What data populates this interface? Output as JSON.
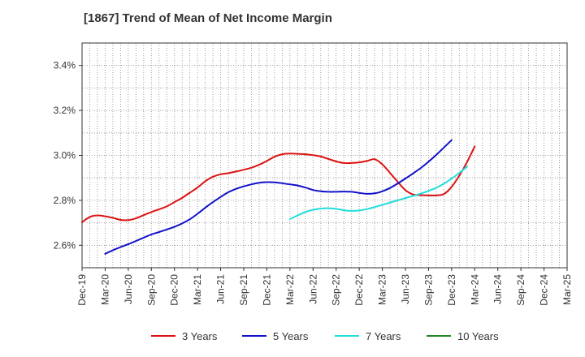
{
  "title": "[1867]  Trend of Mean of Net Income Margin",
  "chart_data": {
    "type": "line",
    "title": "[1867]  Trend of Mean of Net Income Margin",
    "xlabel": "",
    "ylabel": "",
    "x_tick_labels": [
      "Dec-19",
      "Mar-20",
      "Jun-20",
      "Sep-20",
      "Dec-20",
      "Mar-21",
      "Jun-21",
      "Sep-21",
      "Dec-21",
      "Mar-22",
      "Jun-22",
      "Sep-22",
      "Dec-22",
      "Mar-23",
      "Jun-23",
      "Sep-23",
      "Dec-23",
      "Mar-24",
      "Jun-24",
      "Sep-24",
      "Dec-24",
      "Mar-25"
    ],
    "y_ticks": [
      2.6,
      2.8,
      3.0,
      3.2,
      3.4
    ],
    "y_tick_labels": [
      "2.6%",
      "2.8%",
      "3.0%",
      "3.2%",
      "3.4%"
    ],
    "ylim": [
      2.5,
      3.5
    ],
    "grid": true,
    "legend_position": "bottom",
    "series": [
      {
        "name": "3 Years",
        "color": "#dd1111",
        "start_index": 0,
        "values": [
          2.703,
          2.726,
          2.733,
          2.729,
          2.722,
          2.713,
          2.712,
          2.72,
          2.734,
          2.748,
          2.76,
          2.773,
          2.792,
          2.811,
          2.834,
          2.857,
          2.885,
          2.905,
          2.916,
          2.921,
          2.928,
          2.936,
          2.945,
          2.958,
          2.975,
          2.994,
          3.005,
          3.008,
          3.007,
          3.005,
          3.001,
          2.995,
          2.984,
          2.973,
          2.966,
          2.966,
          2.969,
          2.975,
          2.983,
          2.96,
          2.922,
          2.882,
          2.845,
          2.826,
          2.823,
          2.822,
          2.822,
          2.828,
          2.86,
          2.91,
          2.97,
          3.04
        ]
      },
      {
        "name": "5 Years",
        "color": "#1111cc",
        "start_index": 3,
        "values": [
          2.562,
          2.578,
          2.592,
          2.605,
          2.619,
          2.634,
          2.648,
          2.659,
          2.67,
          2.682,
          2.697,
          2.716,
          2.74,
          2.767,
          2.792,
          2.815,
          2.836,
          2.851,
          2.862,
          2.871,
          2.878,
          2.881,
          2.88,
          2.876,
          2.871,
          2.866,
          2.857,
          2.846,
          2.84,
          2.838,
          2.838,
          2.839,
          2.838,
          2.833,
          2.829,
          2.831,
          2.84,
          2.855,
          2.875,
          2.897,
          2.92,
          2.944,
          2.972,
          3.002,
          3.035,
          3.068
        ]
      },
      {
        "name": "7 Years",
        "color": "#22dddd",
        "start_index": 27,
        "values": [
          2.717,
          2.733,
          2.748,
          2.758,
          2.763,
          2.765,
          2.762,
          2.756,
          2.753,
          2.755,
          2.761,
          2.77,
          2.78,
          2.79,
          2.8,
          2.81,
          2.82,
          2.83,
          2.842,
          2.856,
          2.874,
          2.897,
          2.922,
          2.95
        ]
      },
      {
        "name": "10 Years",
        "color": "#228822",
        "start_index": 0,
        "values": []
      }
    ]
  }
}
